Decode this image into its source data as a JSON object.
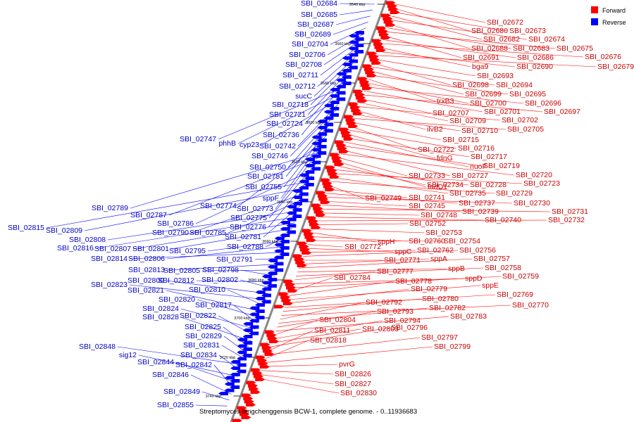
{
  "legend": [
    {
      "label": "Forward",
      "color": "#ff0000"
    },
    {
      "label": "Reverse",
      "color": "#0000ff"
    }
  ],
  "caption": "Streptomyces bingchenggensis BCW-1, complete genome. - 0..11936683",
  "ticks": [
    "3540 kbp",
    "3560 kbp",
    "3580 kbp",
    "3600 kbp",
    "3620 kbp",
    "3640 kbp",
    "3660 kbp",
    "3680 kbp",
    "3700 kbp",
    "3720 kbp",
    "3740 kbp"
  ],
  "reverse_labels": [
    "SBI_02684",
    "SBI_02685",
    "SBI_02687",
    "SBI_02689",
    "SBI_02704",
    "SBI_02706",
    "SBI_02708",
    "SBI_02711",
    "SBI_02712",
    "sucC",
    "SBI_02718",
    "SBI_02721",
    "SBI_02724",
    "SBI_02736",
    "SBI_02747",
    "phhB",
    "cyp23",
    "SBI_02742",
    "SBI_02746",
    "SBI_02750",
    "SBI_02751",
    "SBI_02755",
    "sppF",
    "SBI_02774",
    "SBI_02773",
    "SBI_02789",
    "SBI_02787",
    "SBI_02775",
    "SBI_02786",
    "SBI_02776",
    "SBI_02815",
    "SBI_02809",
    "SBI_02790",
    "SBI_02785",
    "SBI_02781",
    "SBI_02808",
    "SBI_02816",
    "SBI_02807",
    "SBI_02801",
    "SBI_02788",
    "SBI_02795",
    "SBI_02806",
    "SBI_02814",
    "SBI_02791",
    "SBI_02813",
    "SBI_02805",
    "SBI_02798",
    "SBI_02812",
    "SBI_02802",
    "SBI_02800",
    "SBI_02823",
    "SBI_02810",
    "SBI_02821",
    "SBI_02820",
    "SBI_02817",
    "SBI_02824",
    "SBI_02822",
    "SBI_02828",
    "SBI_02825",
    "SBI_02829",
    "SBI_02831",
    "SBI_02848",
    "SBI_02834",
    "sig12",
    "SBI_02844",
    "SBI_02842",
    "SBI_02846",
    "SBI_02849",
    "SBI_02855"
  ],
  "forward_labels": [
    "SBI_02672",
    "SBI_02680",
    "SBI_02673",
    "SBI_02682",
    "SBI_02674",
    "SBI_02688",
    "SBI_02683",
    "SBI_02675",
    "SBI_02691",
    "SBI_02686",
    "SBI_02676",
    "bga9",
    "SBI_02690",
    "SBI_02679",
    "SBI_02693",
    "SBI_02698",
    "SBI_02694",
    "SBI_02699",
    "SBI_02695",
    "trxB3",
    "SBI_02700",
    "SBI_02696",
    "SBI_02701",
    "SBI_02697",
    "SBI_02707",
    "SBI_02709",
    "SBI_02702",
    "ilvB2",
    "SBI_02710",
    "SBI_02705",
    "SBI_02715",
    "SBI_02722",
    "SBI_02716",
    "fdnG",
    "SBI_02717",
    "nuoF",
    "SBI_02719",
    "SBI_02727",
    "SBI_02720",
    "SBI_02733",
    "fadD1",
    "SBI_02734",
    "SBI_02728",
    "SBI_02723",
    "SBI_02735",
    "SBI_02729",
    "SBI_02749",
    "SBI_02741",
    "SBI_02737",
    "SBI_02730",
    "SBI_02745",
    "SBI_02739",
    "SBI_02731",
    "SBI_02748",
    "SBI_02740",
    "SBI_02732",
    "SBI_02752",
    "SBI_02753",
    "sppH",
    "SBI_02760",
    "SBI_02754",
    "SBI_02772",
    "sppC",
    "SBI_02762",
    "SBI_02756",
    "SBI_02771",
    "sppA",
    "SBI_02757",
    "sppB",
    "SBI_02758",
    "SBI_02777",
    "sppD",
    "SBI_02759",
    "SBI_02784",
    "SBI_02778",
    "sppE",
    "SBI_02779",
    "SBI_02769",
    "SBI_02780",
    "SBI_02770",
    "SBI_02792",
    "SBI_02782",
    "SBI_02793",
    "SBI_02783",
    "SBI_02804",
    "SBI_02794",
    "SBI_02803",
    "SBI_02796",
    "SBI_02811",
    "SBI_02797",
    "SBI_02818",
    "SBI_02799",
    "pvrG",
    "SBI_02826",
    "SBI_02827",
    "SBI_02830"
  ]
}
